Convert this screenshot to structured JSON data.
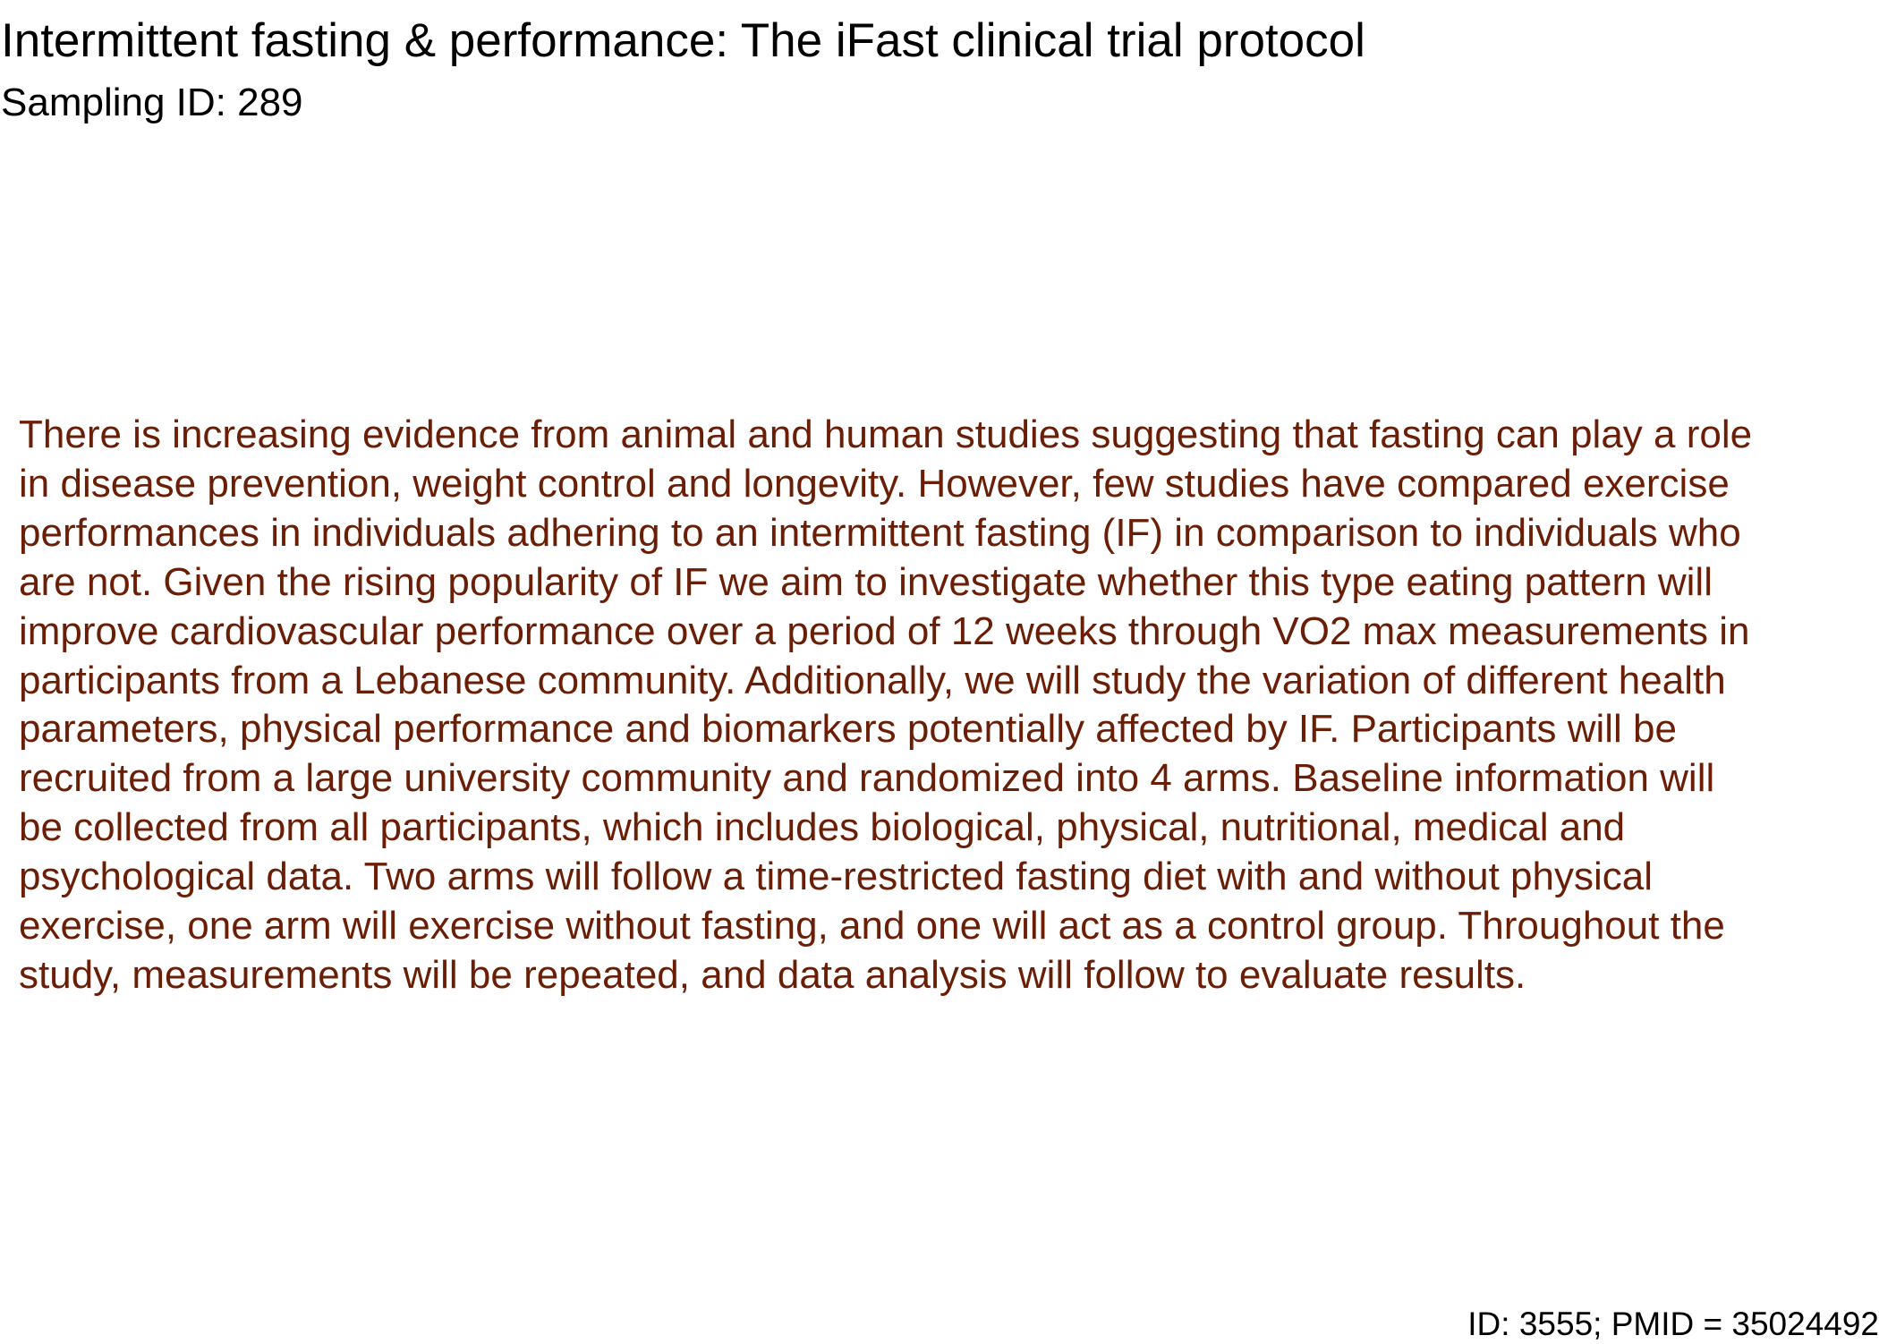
{
  "document": {
    "title": "Intermittent fasting & performance: The iFast clinical trial protocol",
    "sampling_id": "Sampling ID: 289",
    "abstract_color": "#6a1e06",
    "abstract_lines": [
      "There is increasing evidence from animal and human studies suggesting that fasting can play a role",
      "in disease prevention, weight control and longevity. However, few studies have compared exercise",
      "performances in individuals adhering to an intermittent fasting (IF) in comparison to individuals who",
      "are not. Given the rising popularity of IF we aim to investigate whether this type eating pattern will",
      "improve cardiovascular performance over a period of 12 weeks through VO2 max measurements in",
      "participants from a Lebanese community. Additionally, we will study the variation of different health",
      "parameters, physical performance and biomarkers potentially affected by IF. Participants will be",
      "recruited from a large university community and randomized into 4 arms. Baseline information will",
      "be collected from all participants, which includes biological, physical, nutritional, medical and",
      "psychological data. Two arms will follow a time-restricted fasting diet with and without physical",
      "exercise, one arm will exercise without fasting, and one will act as a control group. Throughout the",
      "study, measurements will be repeated, and data analysis will follow to evaluate results."
    ],
    "footer": "ID: 3555; PMID = 35024492"
  }
}
